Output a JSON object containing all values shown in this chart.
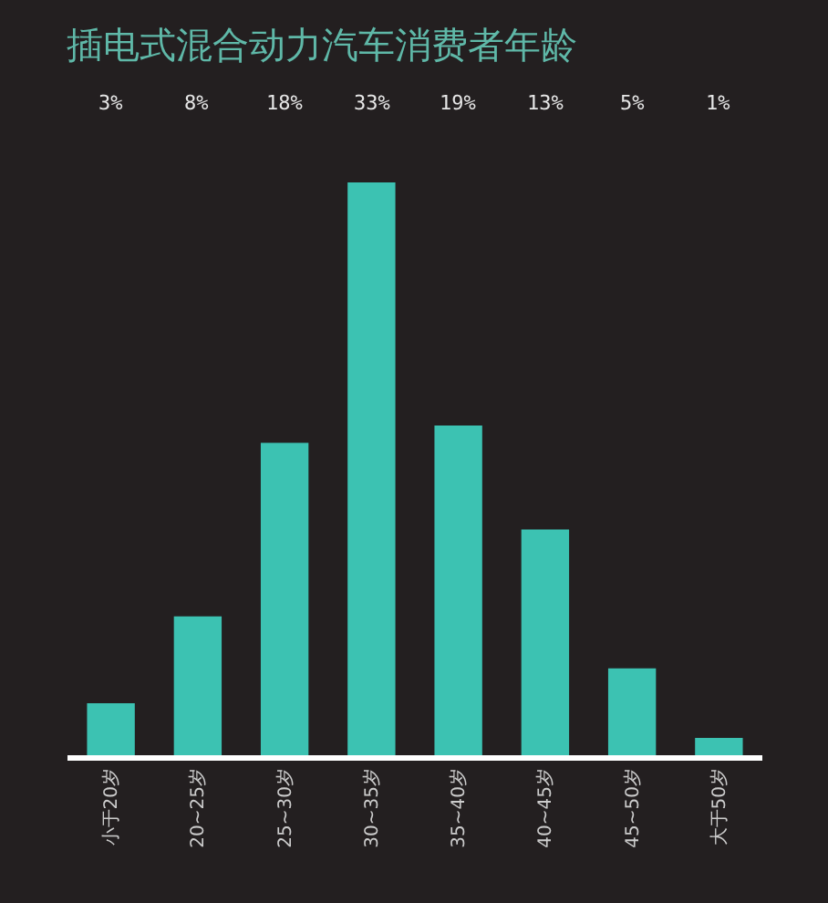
{
  "chart_data": {
    "type": "bar",
    "title": "插电式混合动力汽车消费者年龄",
    "categories": [
      "小于20岁",
      "20~25岁",
      "25~30岁",
      "30~35岁",
      "35~40岁",
      "40~45岁",
      "45~50岁",
      "大于50岁"
    ],
    "values": [
      3,
      8,
      18,
      33,
      19,
      13,
      5,
      1
    ],
    "value_labels": [
      "3%",
      "8%",
      "18%",
      "33%",
      "19%",
      "13%",
      "5%",
      "1%"
    ],
    "color": "#3cc2b2"
  }
}
